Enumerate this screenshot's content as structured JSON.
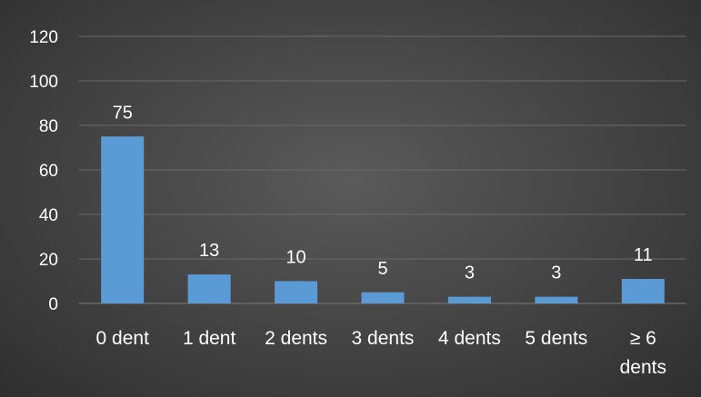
{
  "chart_data": {
    "type": "bar",
    "categories": [
      "0 dent",
      "1 dent",
      "2 dents",
      "3 dents",
      "4 dents",
      "5 dents",
      "≥ 6 dents"
    ],
    "values": [
      75,
      13,
      10,
      5,
      3,
      3,
      11
    ],
    "ylim": [
      0,
      120
    ],
    "yticks": [
      0,
      20,
      40,
      60,
      80,
      100,
      120
    ],
    "grid": true,
    "legend": "none",
    "colors": {
      "bar": "#5b9bd5",
      "text": "#ffffff"
    }
  }
}
